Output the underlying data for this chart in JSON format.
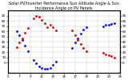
{
  "title": "Solar PV/Inverter Performance Sun Altitude Angle & Sun Incidence Angle on PV Panels",
  "background_color": "#ffffff",
  "grid_color": "#aaaaaa",
  "blue_color": "#0000dd",
  "red_color": "#cc0000",
  "blue_segments": [
    {
      "x": [
        6.5,
        7.0,
        7.5,
        8.0,
        8.5
      ],
      "y": [
        60,
        52,
        43,
        33,
        22
      ]
    },
    {
      "x": [
        9.5,
        10.0,
        10.5,
        11.0,
        11.5,
        12.0
      ],
      "y": [
        5,
        -2,
        -8,
        -10,
        -12,
        -12
      ]
    },
    {
      "x": [
        12.5,
        13.0,
        13.5
      ],
      "y": [
        -10,
        -5,
        2
      ]
    },
    {
      "x": [
        16.5,
        17.0,
        17.5,
        18.0,
        18.5,
        19.0
      ],
      "y": [
        28,
        38,
        47,
        56,
        63,
        68
      ]
    },
    {
      "x": [
        22.0,
        22.5,
        23.0,
        23.5,
        24.0
      ],
      "y": [
        70,
        72,
        73,
        74,
        75
      ]
    }
  ],
  "red_segments": [
    {
      "x": [
        6.5,
        7.0,
        7.5,
        8.0,
        8.5
      ],
      "y": [
        30,
        38,
        47,
        57,
        67
      ]
    },
    {
      "x": [
        9.5,
        10.0,
        10.5,
        11.0,
        11.5,
        12.0
      ],
      "y": [
        85,
        90,
        88,
        82,
        75,
        68
      ]
    },
    {
      "x": [
        12.5,
        13.0,
        13.5
      ],
      "y": [
        72,
        68,
        62
      ]
    },
    {
      "x": [
        16.5,
        17.0,
        17.5,
        18.0,
        18.5,
        19.0
      ],
      "y": [
        62,
        52,
        43,
        35,
        28,
        22
      ]
    },
    {
      "x": [
        22.0,
        22.5,
        23.0,
        23.5,
        24.0
      ],
      "y": [
        18,
        16,
        14,
        12,
        10
      ]
    }
  ],
  "xlim": [
    5,
    25
  ],
  "ylim": [
    -20,
    100
  ],
  "yticks": [
    0,
    10,
    20,
    30,
    40,
    50,
    60,
    70,
    80,
    90
  ],
  "xtick_labels": [
    "5",
    "7",
    "9",
    "11",
    "13",
    "15",
    "17",
    "19",
    "21",
    "23",
    "25"
  ],
  "xtick_vals": [
    5,
    7,
    9,
    11,
    13,
    15,
    17,
    19,
    21,
    23,
    25
  ],
  "markersize": 2,
  "title_fontsize": 3.5,
  "tick_fontsize": 3,
  "figsize": [
    1.6,
    1.0
  ],
  "dpi": 100
}
